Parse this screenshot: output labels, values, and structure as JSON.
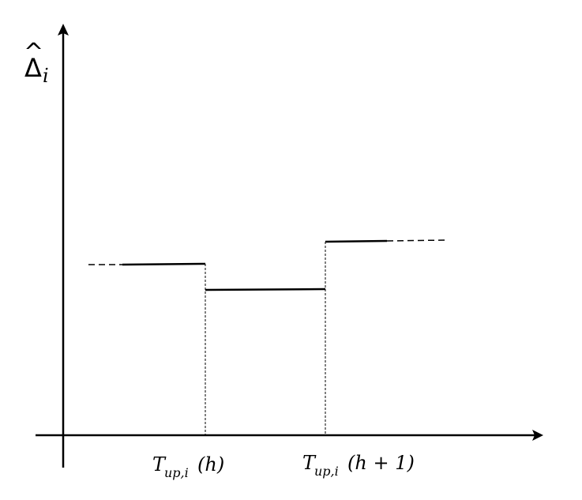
{
  "y_axis_label": {
    "symbol": "Δ",
    "accent": "^",
    "subscript": "i"
  },
  "x_tick_labels": [
    {
      "base": "T",
      "subscript": "up,i",
      "argument": "(h)"
    },
    {
      "base": "T",
      "subscript": "up,i",
      "argument": "(h + 1)"
    }
  ],
  "colors": {
    "line": "#000000",
    "background": "#ffffff"
  }
}
